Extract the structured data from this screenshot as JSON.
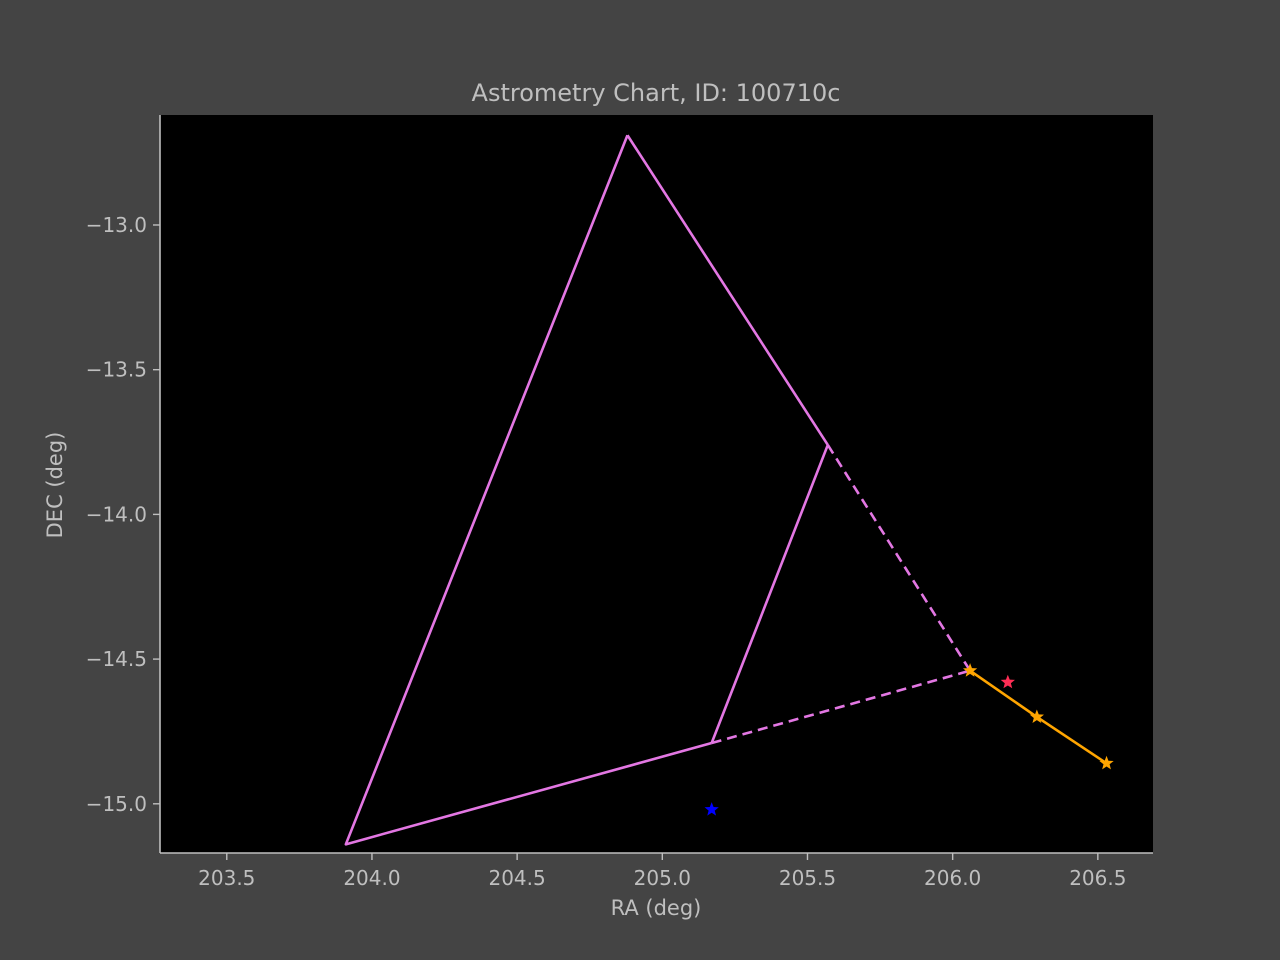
{
  "chart_data": {
    "type": "scatter",
    "title": "Astrometry Chart, ID: 100710c",
    "xlabel": "RA (deg)",
    "ylabel": "DEC (deg)",
    "xlim": [
      203.27,
      206.69
    ],
    "ylim": [
      -15.17,
      -12.62
    ],
    "xticks": [
      203.5,
      204.0,
      204.5,
      205.0,
      205.5,
      206.0,
      206.5
    ],
    "xtick_labels": [
      "203.5",
      "204.0",
      "204.5",
      "205.0",
      "205.5",
      "206.0",
      "206.5"
    ],
    "yticks": [
      -13.0,
      -13.5,
      -14.0,
      -14.5,
      -15.0
    ],
    "ytick_labels": [
      "−13.0",
      "−13.5",
      "−14.0",
      "−14.5",
      "−15.0"
    ],
    "grid": false,
    "colors": {
      "figure_background": "#444444",
      "plot_background": "#000000",
      "axis_and_text": "#bfbfbf",
      "field_outline": "#e377e3",
      "track": "#ffa500",
      "highlight_star": "#ff2e55",
      "reference_star": "#0000ff"
    },
    "series": [
      {
        "style": "solid",
        "color": "#e377e3",
        "marker": "none",
        "points": [
          [
            204.88,
            -12.69
          ],
          [
            205.57,
            -13.76
          ]
        ]
      },
      {
        "style": "solid",
        "color": "#e377e3",
        "marker": "none",
        "points": [
          [
            205.57,
            -13.76
          ],
          [
            205.17,
            -14.79
          ]
        ]
      },
      {
        "style": "solid",
        "color": "#e377e3",
        "marker": "none",
        "points": [
          [
            205.17,
            -14.79
          ],
          [
            203.91,
            -15.14
          ],
          [
            204.88,
            -12.69
          ]
        ]
      },
      {
        "style": "dashed",
        "color": "#e377e3",
        "marker": "none",
        "points": [
          [
            205.57,
            -13.76
          ],
          [
            206.06,
            -14.54
          ]
        ]
      },
      {
        "style": "dashed",
        "color": "#e377e3",
        "marker": "none",
        "points": [
          [
            205.17,
            -14.79
          ],
          [
            206.06,
            -14.54
          ]
        ]
      },
      {
        "style": "solid",
        "color": "#ffa500",
        "marker": "star",
        "points": [
          [
            206.06,
            -14.54
          ],
          [
            206.29,
            -14.7
          ],
          [
            206.53,
            -14.86
          ]
        ]
      },
      {
        "style": "none",
        "color": "#ff2e55",
        "marker": "star",
        "points": [
          [
            206.19,
            -14.58
          ]
        ]
      },
      {
        "style": "none",
        "color": "#0000ff",
        "marker": "star",
        "points": [
          [
            205.17,
            -15.02
          ]
        ]
      }
    ]
  }
}
